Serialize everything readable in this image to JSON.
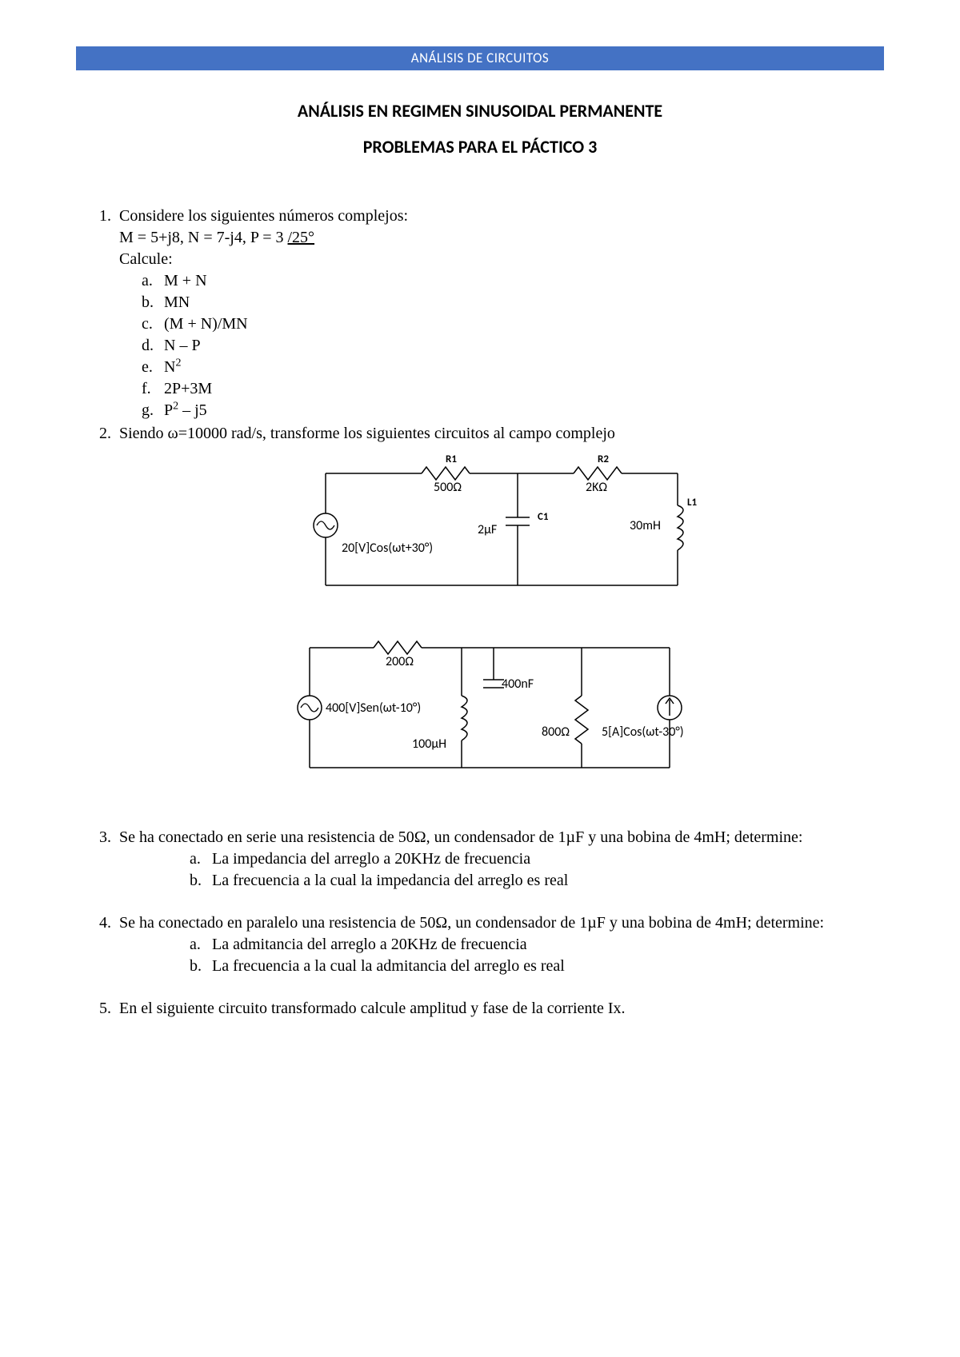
{
  "header": "ANÁLISIS DE CIRCUITOS",
  "title1": "ANÁLISIS EN REGIMEN SINUSOIDAL PERMANENTE",
  "title2": "PROBLEMAS PARA EL PÁCTICO 3",
  "p1": {
    "num": "1.",
    "lead": "Considere los siguientes números complejos:",
    "defs_html": "M = 5+j8,  N = 7-j4, P = 3 <span class=\"angle\">/25°</span>",
    "calc": "Calcule:",
    "items": [
      {
        "l": "a.",
        "html": "M + N"
      },
      {
        "l": "b.",
        "html": "MN"
      },
      {
        "l": "c.",
        "html": "(M + N)/MN"
      },
      {
        "l": "d.",
        "html": "N – P"
      },
      {
        "l": "e.",
        "html": "N<sup>2</sup>"
      },
      {
        "l": "f.",
        "html": "2P+3M"
      },
      {
        "l": "g.",
        "html": "P<sup>2</sup> – j5"
      }
    ]
  },
  "p2": {
    "num": "2.",
    "text": "Siendo ω=10000 rad/s, transforme los siguientes circuitos al campo complejo"
  },
  "circuit1": {
    "stroke": "#000000",
    "font": "Calibri, Arial, sans-serif",
    "labels": {
      "R1": "R1",
      "R1v": "500Ω",
      "R2": "R2",
      "R2v": "2KΩ",
      "C1": "C1",
      "C1v": "2µF",
      "L1": "L1",
      "L1v": "30mH",
      "src": "20[V]Cos(ωt+30°)"
    }
  },
  "circuit2": {
    "stroke": "#000000",
    "font": "Calibri, Arial, sans-serif",
    "labels": {
      "R1v": "200Ω",
      "C1v": "400nF",
      "L1v": "100µH",
      "R2v": "800Ω",
      "vs": "400[V]Sen(ωt-10°)",
      "is": "5[A]Cos(ωt-30°)"
    }
  },
  "p3": {
    "num": "3.",
    "text": "Se ha conectado en serie una resistencia de 50Ω, un condensador de 1µF y una bobina de 4mH; determine:",
    "items": [
      {
        "l": "a.",
        "t": "La impedancia del arreglo a 20KHz de frecuencia"
      },
      {
        "l": "b.",
        "t": "La frecuencia a la cual la impedancia del arreglo es real"
      }
    ]
  },
  "p4": {
    "num": "4.",
    "text": "Se ha conectado en paralelo una resistencia de 50Ω, un condensador de 1µF y una bobina de 4mH; determine:",
    "items": [
      {
        "l": "a.",
        "t": "La admitancia del arreglo a 20KHz de frecuencia"
      },
      {
        "l": "b.",
        "t": "La frecuencia a la cual la admitancia del arreglo es real"
      }
    ]
  },
  "p5": {
    "num": "5.",
    "text": "En el siguiente circuito transformado calcule amplitud y fase de la corriente Ix."
  }
}
